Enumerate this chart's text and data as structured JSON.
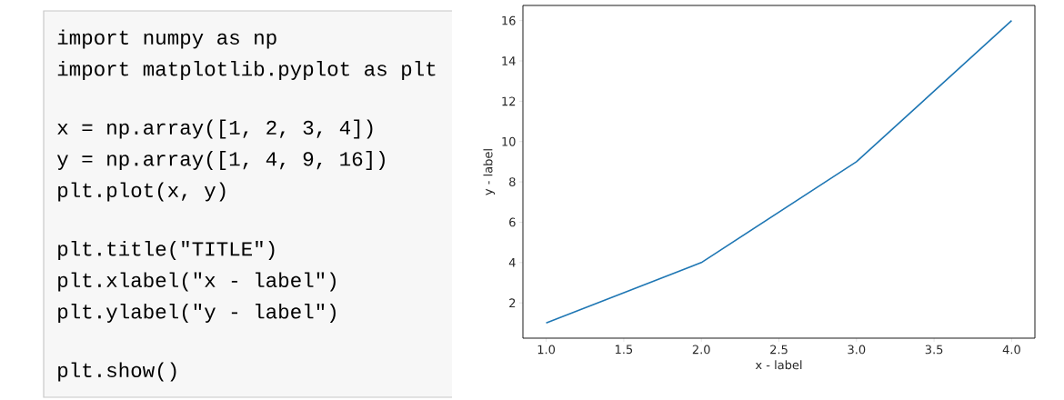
{
  "chart_data": [
    {
      "type": "other",
      "annotations": [
        "import numpy as np",
        "import matplotlib.pyplot as plt",
        "x = np.array([1, 2, 3, 4])",
        "y = np.array([1, 4, 9, 16])",
        "plt.plot(x, y)",
        "plt.title(\"TITLE\")",
        "plt.xlabel(\"x - label\")",
        "plt.ylabel(\"y - label\")",
        "plt.show()"
      ]
    },
    {
      "type": "line",
      "xlabel": "x - label",
      "ylabel": "y - label",
      "x": [
        1,
        2,
        3,
        4
      ],
      "values": [
        1,
        4,
        9,
        16
      ],
      "color": "#1f77b4",
      "xlim": [
        0.85,
        4.15
      ],
      "ylim": [
        0.25,
        16.75
      ],
      "xticks": [
        {
          "value": 1,
          "label": "1.0"
        },
        {
          "value": 1.5,
          "label": "1.5"
        },
        {
          "value": 2,
          "label": "2.0"
        },
        {
          "value": 2.5,
          "label": "2.5"
        },
        {
          "value": 3,
          "label": "3.0"
        },
        {
          "value": 3.5,
          "label": "3.5"
        },
        {
          "value": 4,
          "label": "4.0"
        }
      ],
      "yticks": [
        2,
        4,
        6,
        8,
        10,
        12,
        14,
        16
      ]
    }
  ]
}
